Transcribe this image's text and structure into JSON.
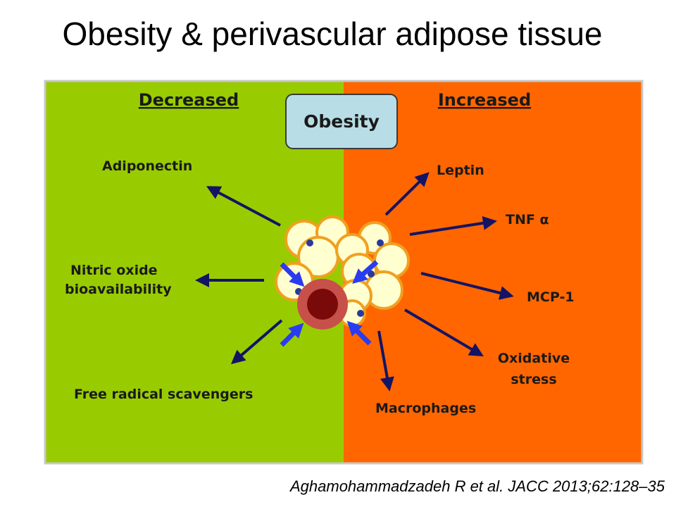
{
  "title": "Obesity & perivascular adipose tissue",
  "diagram": {
    "left_header": "Decreased",
    "right_header": "Increased",
    "center": "Obesity",
    "left_items": [
      {
        "lines": [
          "Adiponectin"
        ]
      },
      {
        "lines": [
          "Nitric oxide",
          "bioavailability"
        ]
      },
      {
        "lines": [
          "Free radical scavengers"
        ]
      }
    ],
    "right_items": [
      {
        "lines": [
          "Leptin"
        ]
      },
      {
        "lines": [
          "TNF α"
        ]
      },
      {
        "lines": [
          "MCP-1"
        ]
      },
      {
        "lines": [
          "Oxidative",
          "stress"
        ]
      },
      {
        "lines": [
          "Macrophages"
        ]
      }
    ]
  },
  "citation": "Aghamohammadzadeh R et al. JACC 2013;62:128–35"
}
